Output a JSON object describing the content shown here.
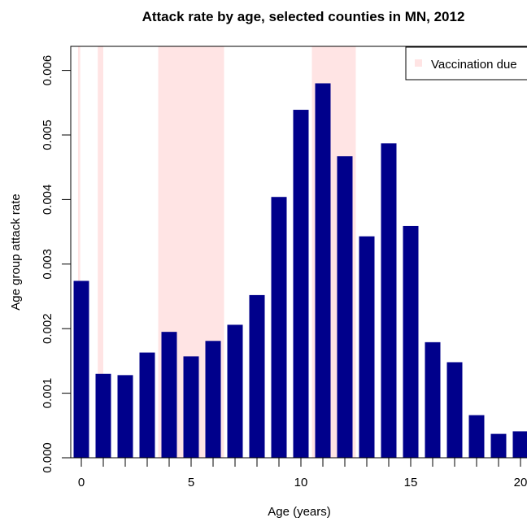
{
  "chart_data": {
    "type": "bar",
    "title": "Attack rate by age, selected counties in MN, 2012",
    "xlabel": "Age (years)",
    "ylabel": "Age group attack rate",
    "categories": [
      0,
      1,
      2,
      3,
      4,
      5,
      6,
      7,
      8,
      9,
      10,
      11,
      12,
      13,
      14,
      15,
      16,
      17,
      18,
      19,
      20
    ],
    "values": [
      0.00274,
      0.0013,
      0.00128,
      0.00163,
      0.00195,
      0.00157,
      0.00181,
      0.00206,
      0.00252,
      0.00404,
      0.00539,
      0.0058,
      0.00467,
      0.00343,
      0.00487,
      0.00359,
      0.00179,
      0.00148,
      0.00066,
      0.00037,
      0.00041
    ],
    "bar_color": "#00008b",
    "xlim": [
      -0.5,
      20.5
    ],
    "ylim": [
      0,
      0.0063
    ],
    "x_ticks": [
      0,
      5,
      10,
      15,
      20
    ],
    "x_tick_labels": [
      "0",
      "5",
      "10",
      "15",
      "20"
    ],
    "y_ticks": [
      0.0,
      0.001,
      0.002,
      0.003,
      0.004,
      0.005,
      0.006
    ],
    "y_tick_labels": [
      "0.000",
      "0.001",
      "0.002",
      "0.003",
      "0.004",
      "0.005",
      "0.006"
    ],
    "vaccination_bands": [
      [
        -0.15,
        -0.05
      ],
      [
        0.75,
        1.0
      ],
      [
        3.5,
        6.5
      ],
      [
        10.5,
        12.5
      ]
    ],
    "band_color": "#ffe4e4",
    "legend": {
      "label": "Vaccination due",
      "placement": "top-right"
    },
    "grid": false
  }
}
